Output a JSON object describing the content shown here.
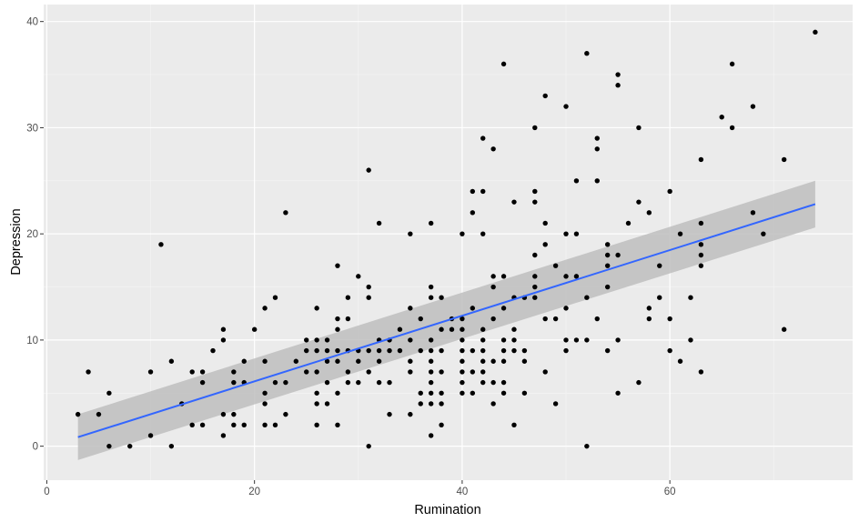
{
  "chart_data": {
    "type": "scatter",
    "title": "",
    "xlabel": "Rumination",
    "ylabel": "Depression",
    "xlim": [
      -0.3,
      77.6
    ],
    "ylim": [
      -3.2,
      41.6
    ],
    "x_ticks": [
      0,
      20,
      40,
      60
    ],
    "y_ticks": [
      0,
      10,
      20,
      30,
      40
    ],
    "x_tick_labels": [
      "0",
      "20",
      "40",
      "60"
    ],
    "y_tick_labels": [
      "0",
      "10",
      "20",
      "30",
      "40"
    ],
    "grid": true,
    "legend": null,
    "colors": {
      "panel_background": "#ebebeb",
      "grid_major": "#ffffff",
      "point": "#000000",
      "fit_line": "#3366ff",
      "confidence_band": "#bdbdbd"
    },
    "smooth": {
      "method": "lm",
      "x": [
        3,
        74
      ],
      "fit": [
        0.85,
        22.8
      ],
      "ci_lower": [
        -1.3,
        20.6
      ],
      "ci_upper": [
        3.0,
        25.0
      ]
    },
    "points": [
      [
        3,
        3
      ],
      [
        4,
        7
      ],
      [
        5,
        3
      ],
      [
        6,
        0
      ],
      [
        6,
        5
      ],
      [
        8,
        0
      ],
      [
        10,
        1
      ],
      [
        10,
        7
      ],
      [
        11,
        19
      ],
      [
        12,
        0
      ],
      [
        12,
        8
      ],
      [
        13,
        4
      ],
      [
        14,
        2
      ],
      [
        14,
        7
      ],
      [
        15,
        2
      ],
      [
        15,
        6
      ],
      [
        15,
        7
      ],
      [
        16,
        9
      ],
      [
        17,
        1
      ],
      [
        17,
        3
      ],
      [
        17,
        10
      ],
      [
        17,
        11
      ],
      [
        18,
        2
      ],
      [
        18,
        3
      ],
      [
        18,
        6
      ],
      [
        18,
        7
      ],
      [
        19,
        2
      ],
      [
        19,
        6
      ],
      [
        19,
        8
      ],
      [
        20,
        11
      ],
      [
        21,
        2
      ],
      [
        21,
        4
      ],
      [
        21,
        5
      ],
      [
        21,
        8
      ],
      [
        21,
        13
      ],
      [
        22,
        2
      ],
      [
        22,
        6
      ],
      [
        22,
        14
      ],
      [
        23,
        3
      ],
      [
        23,
        6
      ],
      [
        23,
        22
      ],
      [
        24,
        8
      ],
      [
        25,
        7
      ],
      [
        25,
        9
      ],
      [
        25,
        10
      ],
      [
        26,
        2
      ],
      [
        26,
        4
      ],
      [
        26,
        5
      ],
      [
        26,
        7
      ],
      [
        26,
        9
      ],
      [
        26,
        10
      ],
      [
        26,
        13
      ],
      [
        27,
        4
      ],
      [
        27,
        6
      ],
      [
        27,
        8
      ],
      [
        27,
        9
      ],
      [
        27,
        10
      ],
      [
        28,
        2
      ],
      [
        28,
        5
      ],
      [
        28,
        8
      ],
      [
        28,
        9
      ],
      [
        28,
        11
      ],
      [
        28,
        12
      ],
      [
        28,
        17
      ],
      [
        29,
        6
      ],
      [
        29,
        7
      ],
      [
        29,
        9
      ],
      [
        29,
        12
      ],
      [
        29,
        14
      ],
      [
        30,
        6
      ],
      [
        30,
        8
      ],
      [
        30,
        9
      ],
      [
        30,
        16
      ],
      [
        31,
        0
      ],
      [
        31,
        7
      ],
      [
        31,
        9
      ],
      [
        31,
        14
      ],
      [
        31,
        15
      ],
      [
        31,
        26
      ],
      [
        32,
        6
      ],
      [
        32,
        8
      ],
      [
        32,
        9
      ],
      [
        32,
        10
      ],
      [
        32,
        21
      ],
      [
        33,
        3
      ],
      [
        33,
        6
      ],
      [
        33,
        9
      ],
      [
        33,
        10
      ],
      [
        34,
        9
      ],
      [
        34,
        11
      ],
      [
        35,
        3
      ],
      [
        35,
        7
      ],
      [
        35,
        8
      ],
      [
        35,
        10
      ],
      [
        35,
        13
      ],
      [
        35,
        20
      ],
      [
        36,
        4
      ],
      [
        36,
        5
      ],
      [
        36,
        9
      ],
      [
        36,
        12
      ],
      [
        37,
        1
      ],
      [
        37,
        4
      ],
      [
        37,
        5
      ],
      [
        37,
        6
      ],
      [
        37,
        7
      ],
      [
        37,
        8
      ],
      [
        37,
        9
      ],
      [
        37,
        10
      ],
      [
        37,
        14
      ],
      [
        37,
        15
      ],
      [
        37,
        21
      ],
      [
        38,
        2
      ],
      [
        38,
        4
      ],
      [
        38,
        5
      ],
      [
        38,
        7
      ],
      [
        38,
        9
      ],
      [
        38,
        11
      ],
      [
        38,
        14
      ],
      [
        39,
        11
      ],
      [
        39,
        12
      ],
      [
        40,
        5
      ],
      [
        40,
        6
      ],
      [
        40,
        7
      ],
      [
        40,
        8
      ],
      [
        40,
        9
      ],
      [
        40,
        10
      ],
      [
        40,
        11
      ],
      [
        40,
        12
      ],
      [
        40,
        20
      ],
      [
        41,
        5
      ],
      [
        41,
        7
      ],
      [
        41,
        9
      ],
      [
        41,
        13
      ],
      [
        41,
        22
      ],
      [
        41,
        24
      ],
      [
        42,
        6
      ],
      [
        42,
        7
      ],
      [
        42,
        8
      ],
      [
        42,
        9
      ],
      [
        42,
        10
      ],
      [
        42,
        11
      ],
      [
        42,
        20
      ],
      [
        42,
        24
      ],
      [
        42,
        29
      ],
      [
        43,
        4
      ],
      [
        43,
        6
      ],
      [
        43,
        8
      ],
      [
        43,
        12
      ],
      [
        43,
        15
      ],
      [
        43,
        16
      ],
      [
        43,
        28
      ],
      [
        44,
        5
      ],
      [
        44,
        6
      ],
      [
        44,
        8
      ],
      [
        44,
        9
      ],
      [
        44,
        10
      ],
      [
        44,
        13
      ],
      [
        44,
        16
      ],
      [
        44,
        36
      ],
      [
        45,
        2
      ],
      [
        45,
        9
      ],
      [
        45,
        10
      ],
      [
        45,
        11
      ],
      [
        45,
        14
      ],
      [
        45,
        23
      ],
      [
        46,
        5
      ],
      [
        46,
        8
      ],
      [
        46,
        9
      ],
      [
        46,
        14
      ],
      [
        47,
        14
      ],
      [
        47,
        15
      ],
      [
        47,
        16
      ],
      [
        47,
        18
      ],
      [
        47,
        23
      ],
      [
        47,
        24
      ],
      [
        47,
        30
      ],
      [
        48,
        7
      ],
      [
        48,
        12
      ],
      [
        48,
        19
      ],
      [
        48,
        21
      ],
      [
        48,
        33
      ],
      [
        49,
        4
      ],
      [
        49,
        12
      ],
      [
        49,
        17
      ],
      [
        50,
        9
      ],
      [
        50,
        10
      ],
      [
        50,
        13
      ],
      [
        50,
        16
      ],
      [
        50,
        20
      ],
      [
        50,
        32
      ],
      [
        51,
        10
      ],
      [
        51,
        16
      ],
      [
        51,
        20
      ],
      [
        51,
        25
      ],
      [
        52,
        0
      ],
      [
        52,
        10
      ],
      [
        52,
        14
      ],
      [
        52,
        37
      ],
      [
        53,
        12
      ],
      [
        53,
        25
      ],
      [
        53,
        28
      ],
      [
        53,
        29
      ],
      [
        54,
        9
      ],
      [
        54,
        15
      ],
      [
        54,
        17
      ],
      [
        54,
        18
      ],
      [
        54,
        19
      ],
      [
        55,
        5
      ],
      [
        55,
        10
      ],
      [
        55,
        18
      ],
      [
        55,
        34
      ],
      [
        55,
        35
      ],
      [
        56,
        21
      ],
      [
        57,
        6
      ],
      [
        57,
        23
      ],
      [
        57,
        30
      ],
      [
        58,
        12
      ],
      [
        58,
        13
      ],
      [
        58,
        22
      ],
      [
        59,
        14
      ],
      [
        59,
        17
      ],
      [
        60,
        9
      ],
      [
        60,
        12
      ],
      [
        60,
        24
      ],
      [
        61,
        8
      ],
      [
        61,
        20
      ],
      [
        62,
        10
      ],
      [
        62,
        14
      ],
      [
        63,
        7
      ],
      [
        63,
        17
      ],
      [
        63,
        18
      ],
      [
        63,
        19
      ],
      [
        63,
        21
      ],
      [
        63,
        27
      ],
      [
        65,
        31
      ],
      [
        66,
        30
      ],
      [
        66,
        36
      ],
      [
        68,
        22
      ],
      [
        68,
        32
      ],
      [
        69,
        20
      ],
      [
        71,
        11
      ],
      [
        71,
        27
      ],
      [
        74,
        39
      ]
    ]
  }
}
